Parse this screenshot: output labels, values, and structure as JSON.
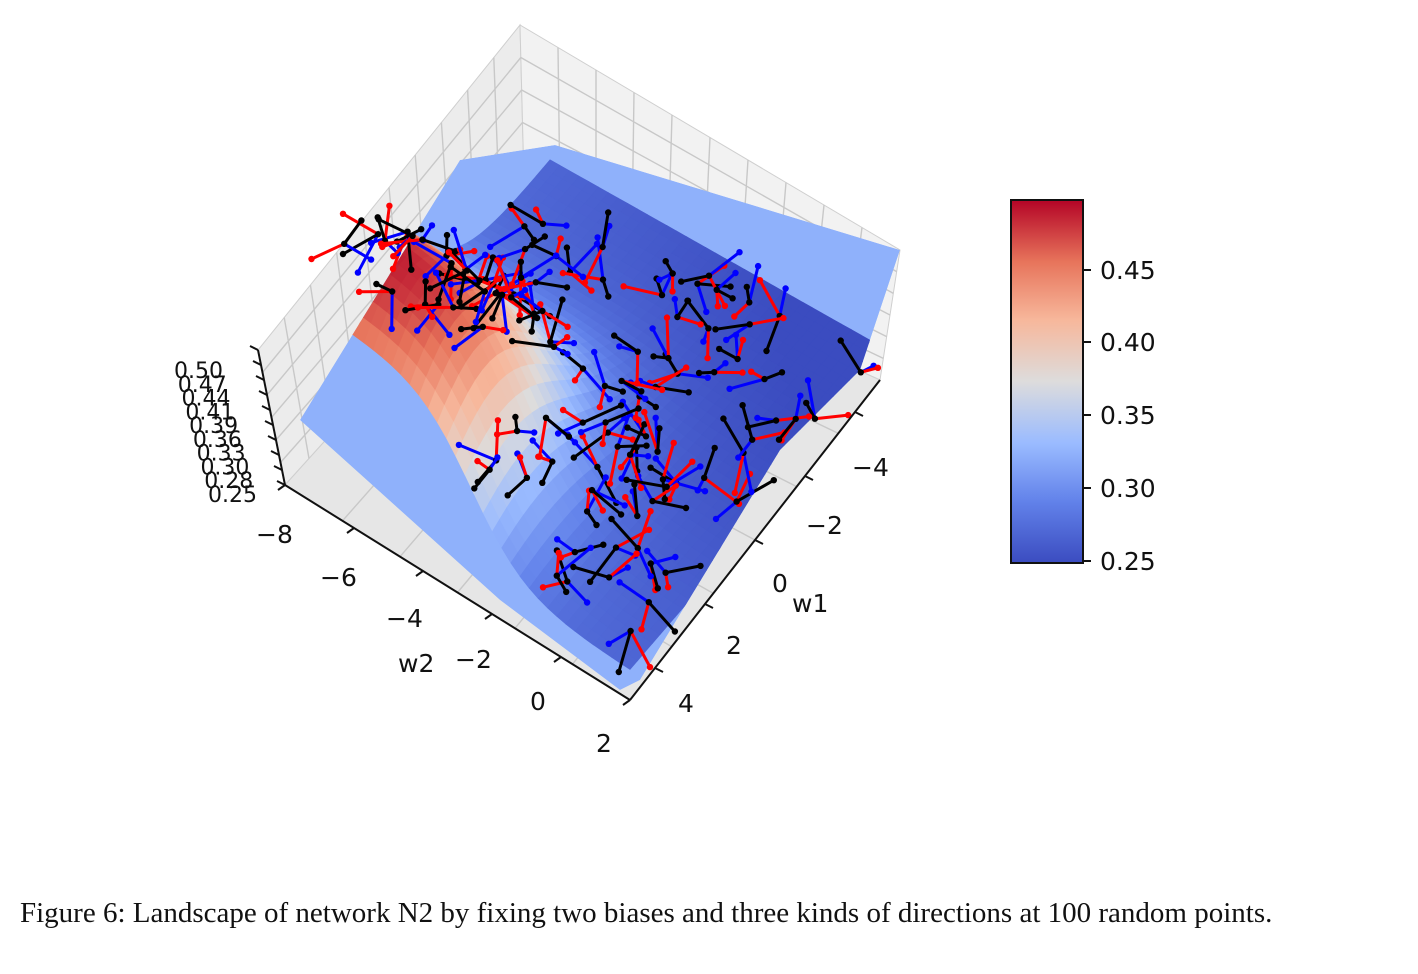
{
  "caption": "Figure 6: Landscape of network N2 by fixing two biases and three kinds of directions at 100 random points.",
  "chart_data": [
    {
      "type": "surface3d",
      "xlabel": "w1",
      "ylabel": "w2",
      "zlabel": "",
      "xlim": [
        -5,
        5
      ],
      "ylim": [
        -8,
        2
      ],
      "zlim": [
        0.25,
        0.5
      ],
      "xticks": [
        "4",
        "2",
        "0",
        "−2",
        "−4"
      ],
      "yticks": [
        "−8",
        "−6",
        "−4",
        "−2",
        "0",
        "2"
      ],
      "zticks": [
        "0.50",
        "0.47",
        "0.44",
        "0.41",
        "0.39",
        "0.36",
        "0.33",
        "0.30",
        "0.28",
        "0.25"
      ],
      "colormap": "coolwarm",
      "surface_min": 0.25,
      "surface_max": 0.49,
      "segment_colors": [
        "#0000ff",
        "#ff0000",
        "#000000"
      ],
      "n_points": 100
    },
    {
      "type": "colorbar",
      "range": [
        0.245,
        0.495
      ],
      "ticks": [
        "0.45",
        "0.40",
        "0.35",
        "0.30",
        "0.25"
      ],
      "colors": [
        "#3b4cc0",
        "#7396f5",
        "#b0cbfc",
        "#dddddd",
        "#f5c4ac",
        "#e9785d",
        "#b40426"
      ]
    }
  ]
}
